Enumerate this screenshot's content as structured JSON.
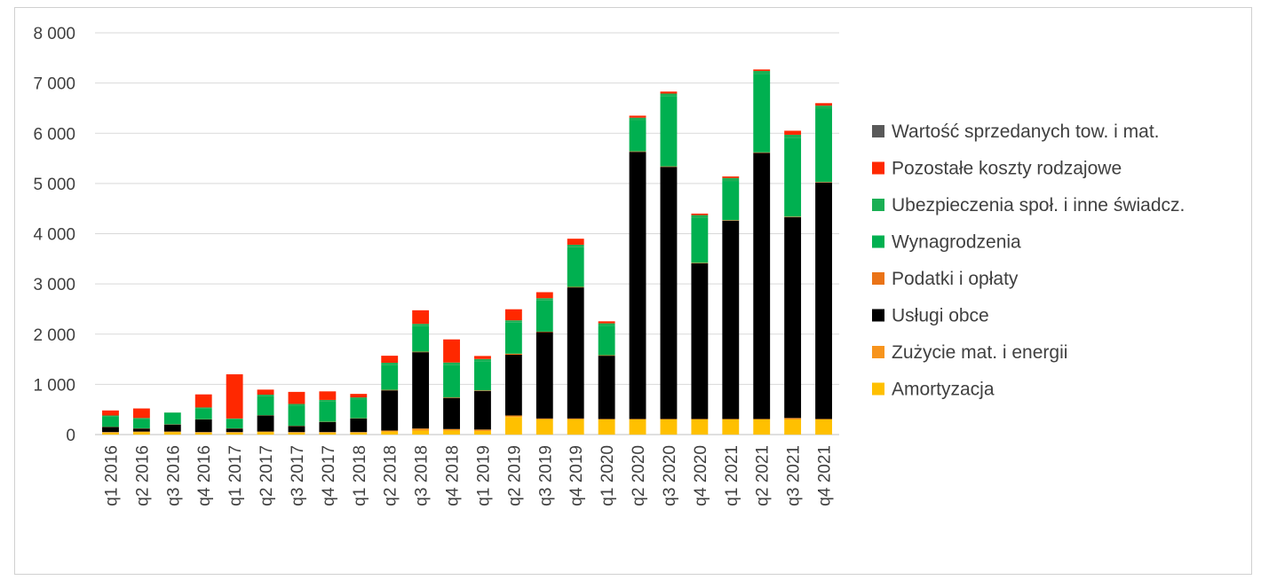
{
  "chart_data": {
    "type": "bar",
    "stacked": true,
    "title": "",
    "xlabel": "",
    "ylabel": "",
    "ylim": [
      0,
      8000
    ],
    "yticks": [
      0,
      1000,
      2000,
      3000,
      4000,
      5000,
      6000,
      7000,
      8000
    ],
    "ytick_labels": [
      "0",
      "1 000",
      "2 000",
      "3 000",
      "4 000",
      "5 000",
      "6 000",
      "7 000",
      "8 000"
    ],
    "grid": true,
    "legend_position": "right",
    "categories": [
      "q1 2016",
      "q2 2016",
      "q3 2016",
      "q4 2016",
      "q1 2017",
      "q2 2017",
      "q3 2017",
      "q4 2017",
      "q1 2018",
      "q2 2018",
      "q3 2018",
      "q4 2018",
      "q1 2019",
      "q2 2019",
      "q3 2019",
      "q4 2019",
      "q1 2020",
      "q2 2020",
      "q3 2020",
      "q4 2020",
      "q1 2021",
      "q2 2021",
      "q3 2021",
      "q4 2021"
    ],
    "series": [
      {
        "name": "Amortyzacja",
        "color": "#FFC000",
        "values": [
          40,
          50,
          50,
          40,
          40,
          50,
          40,
          40,
          40,
          60,
          80,
          80,
          70,
          350,
          300,
          300,
          300,
          300,
          300,
          300,
          300,
          300,
          300,
          300
        ]
      },
      {
        "name": "Zużycie mat. i energii",
        "color": "#F7941D",
        "values": [
          10,
          10,
          10,
          10,
          10,
          10,
          10,
          10,
          10,
          20,
          40,
          30,
          30,
          30,
          20,
          20,
          10,
          10,
          10,
          10,
          10,
          10,
          30,
          10
        ]
      },
      {
        "name": "Usługi obce",
        "color": "#000000",
        "values": [
          100,
          60,
          140,
          250,
          70,
          320,
          120,
          200,
          270,
          800,
          1520,
          620,
          770,
          1210,
          1720,
          2610,
          1260,
          5320,
          5020,
          3100,
          3950,
          5300,
          4000,
          4710
        ]
      },
      {
        "name": "Podatki i opłaty",
        "color": "#EA7317",
        "values": [
          5,
          5,
          5,
          5,
          5,
          5,
          5,
          5,
          5,
          10,
          10,
          10,
          10,
          20,
          10,
          10,
          10,
          10,
          10,
          10,
          10,
          10,
          10,
          10
        ]
      },
      {
        "name": "Wynagrodzenia",
        "color": "#00B050",
        "values": [
          210,
          190,
          220,
          220,
          180,
          380,
          400,
          400,
          380,
          500,
          510,
          650,
          580,
          620,
          620,
          790,
          590,
          620,
          1390,
          890,
          780,
          1560,
          1570,
          1460
        ]
      },
      {
        "name": "Ubezpieczenia społ. i inne świadcz.",
        "color": "#1AAF54",
        "values": [
          15,
          15,
          15,
          15,
          15,
          30,
          35,
          35,
          35,
          40,
          45,
          45,
          45,
          45,
          45,
          50,
          45,
          50,
          60,
          60,
          60,
          60,
          60,
          60
        ]
      },
      {
        "name": "Pozostałe koszty rodzajowe",
        "color": "#FF2800",
        "values": [
          100,
          190,
          0,
          260,
          880,
          100,
          240,
          170,
          70,
          140,
          270,
          460,
          60,
          220,
          120,
          120,
          40,
          40,
          40,
          30,
          30,
          30,
          80,
          50
        ]
      },
      {
        "name": "Wartość sprzedanych tow. i mat.",
        "color": "#595959",
        "values": [
          0,
          0,
          0,
          0,
          0,
          0,
          0,
          0,
          0,
          0,
          0,
          0,
          0,
          0,
          0,
          0,
          0,
          0,
          0,
          0,
          0,
          0,
          0,
          0
        ]
      }
    ]
  }
}
